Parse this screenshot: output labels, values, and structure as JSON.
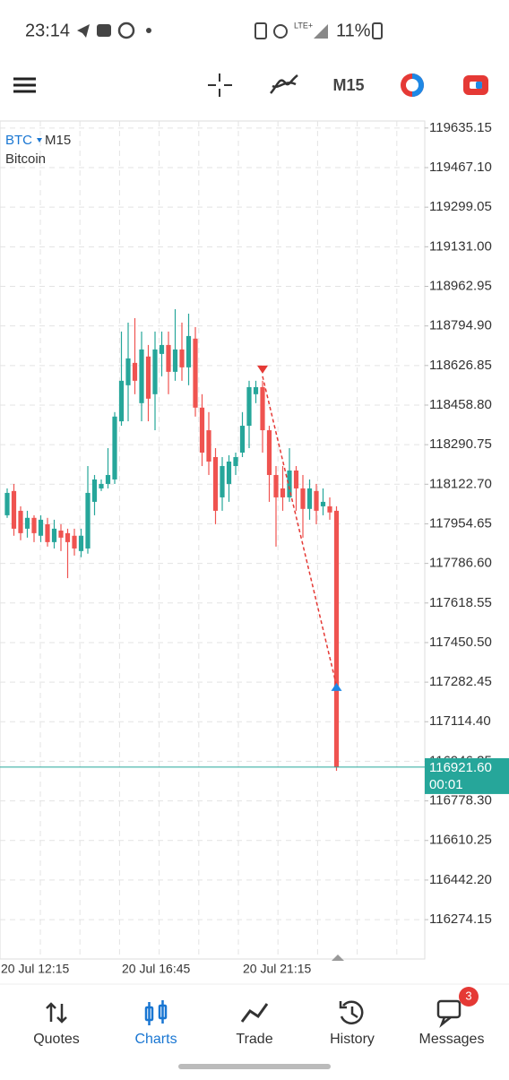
{
  "status_bar": {
    "time": "23:14",
    "network": "LTE+",
    "battery": "11%"
  },
  "toolbar": {
    "timeframe": "M15"
  },
  "chart_data": {
    "type": "candlestick",
    "symbol": "BTC",
    "timeframe": "M15",
    "description": "Bitcoin",
    "categories": [
      "20 Jul 12:15",
      null,
      null,
      null,
      null,
      null,
      null,
      null,
      null,
      null,
      null,
      null,
      null,
      null,
      null,
      null,
      null,
      null,
      "20 Jul 16:45",
      null,
      null,
      null,
      null,
      null,
      null,
      null,
      null,
      null,
      null,
      null,
      null,
      null,
      null,
      null,
      null,
      null,
      "20 Jul 21:15",
      null,
      null,
      null,
      null,
      null,
      null,
      null,
      null,
      null,
      null,
      null,
      null,
      null
    ],
    "open": [
      117991,
      118094,
      118010,
      117934,
      117980,
      117904,
      117953,
      117877,
      117926,
      117915,
      117904,
      117839,
      117850,
      118048,
      118105,
      118124,
      118143,
      118390,
      118543,
      118638,
      118467,
      118665,
      118505,
      118676,
      118714,
      118600,
      118695,
      118619,
      118741,
      118448,
      118352,
      118238,
      118067,
      118124,
      118200,
      118257,
      118371,
      118505,
      118535,
      118352,
      118162,
      118105,
      118067,
      118181,
      118105,
      118018,
      118094,
      118029,
      118029,
      118010
    ],
    "high": [
      118105,
      118124,
      118029,
      118010,
      117991,
      117991,
      117980,
      117972,
      117953,
      117934,
      117934,
      117934,
      118200,
      118162,
      118143,
      118276,
      118429,
      118771,
      118809,
      118828,
      118771,
      118714,
      118771,
      118771,
      118771,
      118866,
      118809,
      118847,
      118790,
      118505,
      118429,
      118276,
      118238,
      118246,
      118257,
      118429,
      118562,
      118562,
      118562,
      118371,
      118200,
      118200,
      118276,
      118200,
      118162,
      118143,
      118124,
      118105,
      118067,
      118029
    ],
    "low": [
      117980,
      117904,
      117885,
      117896,
      117877,
      117877,
      117858,
      117850,
      117839,
      117724,
      117820,
      117813,
      117828,
      117991,
      118094,
      118105,
      118124,
      118371,
      118390,
      118505,
      118390,
      118390,
      118352,
      118581,
      118505,
      118562,
      118562,
      118543,
      118410,
      118200,
      118162,
      117953,
      118010,
      118048,
      118162,
      118238,
      118276,
      118467,
      118257,
      118048,
      117858,
      118010,
      118048,
      118010,
      117896,
      117972,
      117953,
      117991,
      117972,
      116906
    ],
    "close": [
      118086,
      117934,
      117915,
      117980,
      117915,
      117972,
      117877,
      117934,
      117896,
      117877,
      117850,
      117904,
      118086,
      118143,
      118124,
      118162,
      118410,
      118562,
      118657,
      118562,
      118695,
      118486,
      118695,
      118714,
      118600,
      118695,
      118619,
      118752,
      118448,
      118257,
      118219,
      118010,
      118200,
      118219,
      118238,
      118371,
      118535,
      118535,
      118352,
      118162,
      118067,
      118067,
      118181,
      118105,
      118018,
      118105,
      118010,
      118048,
      118003,
      116921.6
    ],
    "up_color": "#26a69a",
    "down_color": "#ef5350",
    "ylim": [
      116107,
      119665
    ],
    "yticks": [
      119635.15,
      {
        "value": 119467.1,
        "label": "119467.10"
      },
      119299.05,
      {
        "value": 119131,
        "label": "119131.00"
      },
      118962.95,
      {
        "value": 118794.9,
        "label": "118794.90"
      },
      118626.85,
      {
        "value": 118458.8,
        "label": "118458.80"
      },
      118290.75,
      {
        "value": 118122.7,
        "label": "118122.70"
      },
      117954.65,
      {
        "value": 117786.6,
        "label": "117786.60"
      },
      117618.55,
      {
        "value": 117450.5,
        "label": "117450.50"
      },
      117282.45,
      {
        "value": 117114.4,
        "label": "117114.40"
      },
      116946.35,
      {
        "value": 116778.3,
        "label": "116778.30"
      },
      116610.25,
      {
        "value": 116442.2,
        "label": "116442.20"
      },
      116274.15
    ],
    "grid": true,
    "current_price": {
      "value": 116921.6,
      "label": "116921.60"
    },
    "countdown": "00:01",
    "trade": {
      "open": 118581,
      "close": 117268
    }
  },
  "nav": {
    "items": [
      "Quotes",
      "Charts",
      "Trade",
      "History",
      "Messages"
    ],
    "badge": "3"
  }
}
